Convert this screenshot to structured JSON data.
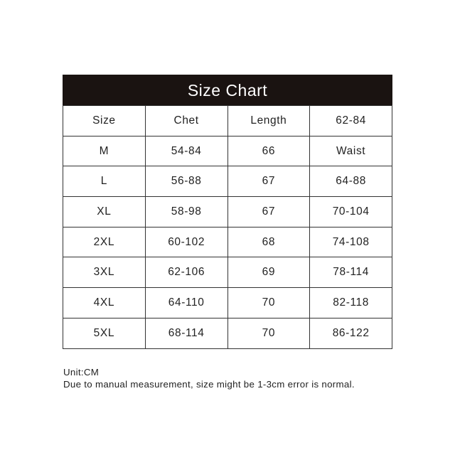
{
  "title": "Size Chart",
  "rows": [
    [
      "Size",
      "Chet",
      "Length",
      "62-84"
    ],
    [
      "M",
      "54-84",
      "66",
      "Waist"
    ],
    [
      "L",
      "56-88",
      "67",
      "64-88"
    ],
    [
      "XL",
      "58-98",
      "67",
      "70-104"
    ],
    [
      "2XL",
      "60-102",
      "68",
      "74-108"
    ],
    [
      "3XL",
      "62-106",
      "69",
      "78-114"
    ],
    [
      "4XL",
      "64-110",
      "70",
      "82-118"
    ],
    [
      "5XL",
      "68-114",
      "70",
      "86-122"
    ]
  ],
  "notes": {
    "unit": "Unit:CM",
    "disclaimer": "Due to manual measurement, size might be 1-3cm error is normal."
  },
  "colors": {
    "header_bg": "#1a1311",
    "header_text": "#ffffff",
    "border": "#333333"
  }
}
